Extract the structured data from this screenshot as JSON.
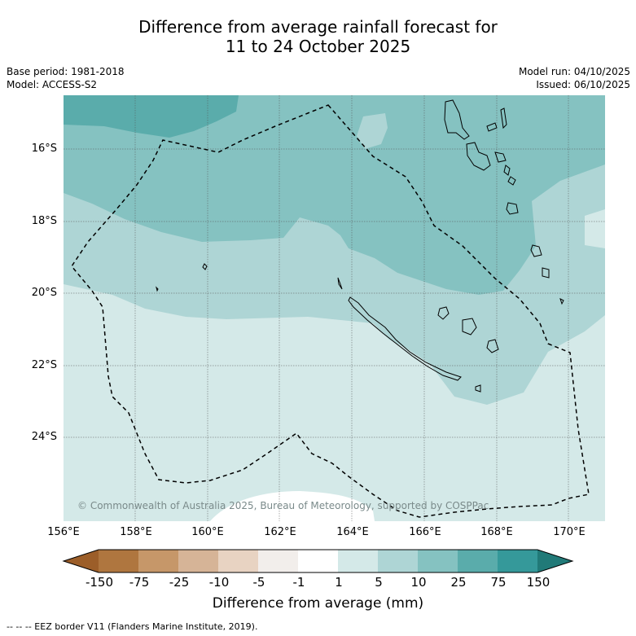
{
  "title": {
    "line1": "Difference from average rainfall forecast for",
    "line2": "11 to 24 October 2025"
  },
  "meta": {
    "base_period": "Base period: 1981-2018",
    "model": "Model: ACCESS-S2",
    "model_run": "Model run: 04/10/2025",
    "issued": "Issued: 06/10/2025"
  },
  "map": {
    "copyright": "© Commonwealth of Australia 2025, Bureau of Meteorology, supported by COSPPac",
    "lat_labels": [
      "16°S",
      "18°S",
      "20°S",
      "22°S",
      "24°S"
    ],
    "lon_labels": [
      "156°E",
      "158°E",
      "160°E",
      "162°E",
      "164°E",
      "166°E",
      "168°E",
      "170°E"
    ],
    "region_colors": {
      "10_to_25": "#5aacab",
      "5_to_10": "#85c2c1",
      "1_to_5": "#aed5d5",
      "minus1_to_1": "#d4e9e8",
      "neutral": "#ffffff"
    }
  },
  "colorbar": {
    "title": "Difference from average (mm)",
    "tick_labels": [
      "-150",
      "-75",
      "-25",
      "-10",
      "-5",
      "-1",
      "1",
      "5",
      "10",
      "25",
      "75",
      "150"
    ],
    "colors": [
      "#9c5e29",
      "#af763f",
      "#c69769",
      "#d6b497",
      "#e8d3c2",
      "#f2eeeb",
      "#ffffff",
      "#d4e9e8",
      "#aed5d5",
      "#85c2c1",
      "#5aacab",
      "#35999a",
      "#217a78"
    ]
  },
  "footnote": "--  --  -- EEZ border V11 (Flanders Marine Institute, 2019)."
}
